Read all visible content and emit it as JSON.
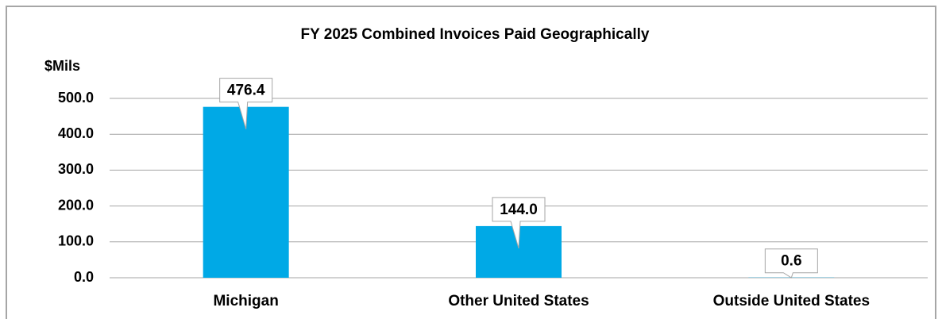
{
  "chart_data": {
    "type": "bar",
    "title": "FY 2025 Combined Invoices Paid Geographically",
    "y_label": "$Mils",
    "categories": [
      "Michigan",
      "Other United States",
      "Outside United States"
    ],
    "values": [
      476.4,
      144.0,
      0.6
    ],
    "value_labels": [
      "476.4",
      "144.0",
      "0.6"
    ],
    "color": "#00a9e6",
    "ylim": [
      0,
      500
    ],
    "yticks": [
      {
        "value": 0,
        "label": "0.0"
      },
      {
        "value": 100,
        "label": "100.0"
      },
      {
        "value": 200,
        "label": "200.0"
      },
      {
        "value": 300,
        "label": "300.0"
      },
      {
        "value": 400,
        "label": "400.0"
      },
      {
        "value": 500,
        "label": "500.0"
      }
    ],
    "grid": true
  }
}
